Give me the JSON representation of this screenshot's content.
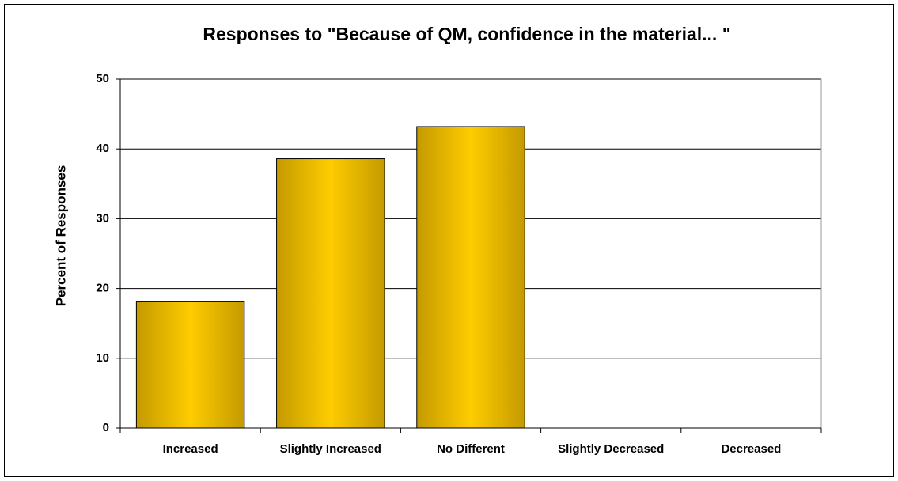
{
  "chart_data": {
    "type": "bar",
    "title": "Responses to \"Because of QM, confidence in the material... \"",
    "y_label": "Percent of Responses",
    "categories": [
      "Increased",
      "Slightly Increased",
      "No Different",
      "Slightly Decreased",
      "Decreased"
    ],
    "values": [
      18.1,
      38.6,
      43.2,
      0,
      0
    ],
    "color": "#ffcc00",
    "ylim": [
      0,
      50
    ],
    "yticks": [
      0,
      10,
      20,
      30,
      40,
      50
    ],
    "grid": true
  }
}
